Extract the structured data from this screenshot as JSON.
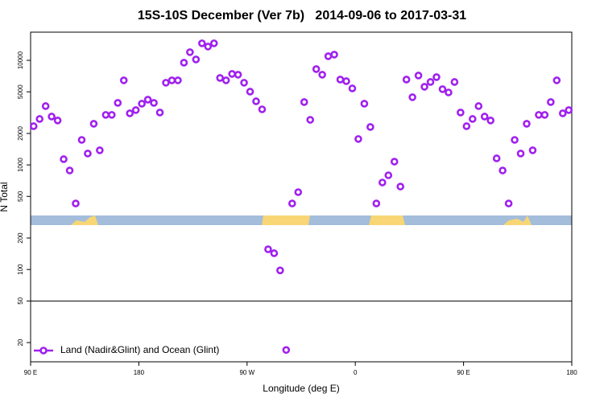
{
  "chart_data": {
    "type": "scatter",
    "log_y": true,
    "title": "15S-10S December (Ver 7b)   2014-09-06 to 2017-03-31",
    "x_label": "Longitude (deg E)",
    "y_label": "N Total",
    "xlim": [
      90,
      540
    ],
    "ylim": [
      13.1,
      18600
    ],
    "xticks": [
      {
        "value": 90,
        "label": "90 E"
      },
      180,
      {
        "value": 270,
        "label": "90 W"
      },
      {
        "value": 360,
        "label": "0"
      },
      {
        "value": 450,
        "label": "90 E"
      },
      {
        "value": 540,
        "label": "180"
      }
    ],
    "yticks": [
      20,
      50,
      100,
      200,
      500,
      1000,
      2000,
      5000,
      10000
    ],
    "reference_line": 50,
    "legend": "bottom-left",
    "series": [
      {
        "name": "Land (Nadir&Glint) and Ocean (Glint)",
        "color": "#a020f0",
        "x": [
          92.5,
          97.5,
          102.5,
          107.5,
          112.5,
          117.5,
          122.5,
          127.5,
          132.5,
          137.5,
          142.5,
          147.5,
          152.5,
          157.5,
          162.5,
          167.5,
          172.5,
          177.5,
          182.5,
          187.5,
          192.5,
          197.5,
          202.5,
          207.5,
          212.5,
          217.5,
          222.5,
          227.5,
          232.5,
          237.5,
          242.5,
          247.5,
          252.5,
          257.5,
          262.5,
          267.5,
          272.5,
          277.5,
          282.5,
          287.5,
          292.5,
          297.5,
          302.5,
          307.5,
          312.5,
          317.5,
          322.5,
          327.5,
          332.5,
          337.5,
          342.5,
          347.5,
          352.5,
          357.5,
          362.5,
          367.5,
          372.5,
          377.5,
          382.5,
          387.5,
          392.5,
          397.5,
          402.5,
          407.5,
          412.5,
          417.5,
          422.5,
          427.5,
          432.5,
          437.5,
          442.5,
          447.5,
          452.5,
          457.5,
          462.5,
          467.5,
          472.5,
          477.5,
          482.5,
          487.5,
          492.5,
          497.5,
          502.5,
          507.5,
          512.5,
          517.5,
          522.5,
          527.5,
          532.5,
          537.5
        ],
        "values": [
          2345,
          2750,
          3650,
          2900,
          2660,
          1135,
          885,
          428,
          1735,
          1285,
          2475,
          1380,
          3010,
          3010,
          3920,
          6440,
          3115,
          3345,
          3850,
          4210,
          3920,
          3170,
          6110,
          6440,
          6440,
          9500,
          11970,
          10200,
          14550,
          13550,
          14550,
          6790,
          6440,
          7420,
          7290,
          6110,
          5020,
          4060,
          3400,
          156,
          143,
          98,
          17,
          428,
          549,
          3990,
          2700,
          8250,
          7290,
          10950,
          11350,
          6550,
          6320,
          5390,
          1770,
          3850,
          2305,
          428,
          679,
          796,
          1075,
          621,
          6550,
          4440,
          7160,
          5590,
          6210,
          6910,
          5300,
          4930,
          6210,
          3170,
          2345,
          2750,
          3650,
          2900,
          2660,
          1155,
          885,
          428,
          1735,
          1285,
          2475,
          1380,
          3010,
          3010,
          3990,
          6440,
          3115,
          3345
        ]
      }
    ]
  }
}
